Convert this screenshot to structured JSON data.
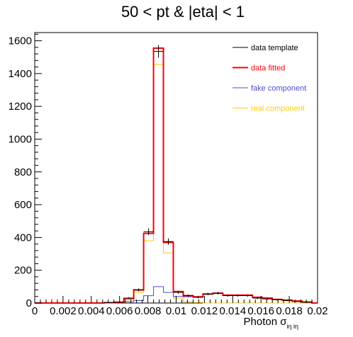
{
  "chart_data": {
    "type": "histogram",
    "title": "50 < pt & |eta| < 1",
    "xlabel": "Photon σ",
    "xlabel_sub": "iη iη",
    "ylabel": "",
    "xlim": [
      0,
      0.02
    ],
    "ylim": [
      0,
      1650
    ],
    "xticks": [
      {
        "value": 0,
        "label": "0"
      },
      {
        "value": 0.002,
        "label": "0.002"
      },
      {
        "value": 0.004,
        "label": "0.004"
      },
      {
        "value": 0.006,
        "label": "0.006"
      },
      {
        "value": 0.008,
        "label": "0.008"
      },
      {
        "value": 0.01,
        "label": "0.01"
      },
      {
        "value": 0.012,
        "label": "0.012"
      },
      {
        "value": 0.014,
        "label": "0.014"
      },
      {
        "value": 0.016,
        "label": "0.016"
      },
      {
        "value": 0.018,
        "label": "0.018"
      },
      {
        "value": 0.02,
        "label": "0.02"
      }
    ],
    "yticks": [
      {
        "value": 0,
        "label": "0"
      },
      {
        "value": 200,
        "label": "200"
      },
      {
        "value": 400,
        "label": "400"
      },
      {
        "value": 600,
        "label": "600"
      },
      {
        "value": 800,
        "label": "800"
      },
      {
        "value": 1000,
        "label": "1000"
      },
      {
        "value": 1200,
        "label": "1200"
      },
      {
        "value": 1400,
        "label": "1400"
      },
      {
        "value": 1600,
        "label": "1600"
      }
    ],
    "bin_edges": [
      0,
      0.0007,
      0.0014,
      0.0021,
      0.0028,
      0.0035,
      0.0042,
      0.0049,
      0.0056,
      0.0063,
      0.007,
      0.0077,
      0.0084,
      0.0091,
      0.0098,
      0.0105,
      0.0112,
      0.0119,
      0.0126,
      0.0133,
      0.014,
      0.0147,
      0.0154,
      0.0161,
      0.0168,
      0.0175,
      0.0182,
      0.0189,
      0.0196,
      0.02
    ],
    "series": [
      {
        "name": "data template",
        "style": "points",
        "color": "#000000",
        "values": [
          0,
          0,
          0,
          0,
          0,
          0,
          0,
          2,
          5,
          30,
          80,
          435,
          1535,
          375,
          65,
          45,
          35,
          55,
          60,
          45,
          45,
          45,
          30,
          25,
          20,
          15,
          10,
          5,
          0
        ]
      },
      {
        "name": "data fitted",
        "style": "step",
        "color": "#ff0000",
        "values": [
          0,
          0,
          0,
          0,
          0,
          0,
          0,
          2,
          5,
          28,
          80,
          425,
          1555,
          370,
          70,
          45,
          38,
          55,
          60,
          48,
          48,
          48,
          35,
          30,
          22,
          18,
          12,
          6,
          0
        ]
      },
      {
        "name": "fake component",
        "style": "step",
        "color": "#4b4bd6",
        "values": [
          0,
          0,
          0,
          0,
          0,
          0,
          0,
          1,
          2,
          8,
          15,
          45,
          100,
          65,
          40,
          38,
          35,
          55,
          60,
          48,
          48,
          48,
          35,
          30,
          22,
          18,
          12,
          6,
          0
        ]
      },
      {
        "name": "real component",
        "style": "step",
        "color": "#ffcc00",
        "values": [
          0,
          0,
          0,
          0,
          0,
          0,
          0,
          1,
          3,
          20,
          65,
          380,
          1455,
          305,
          30,
          7,
          3,
          0,
          0,
          0,
          0,
          0,
          0,
          0,
          0,
          0,
          0,
          0,
          0
        ]
      }
    ],
    "legend": {
      "position": "top-right",
      "entries": [
        {
          "label": "data template",
          "color": "#000000",
          "text_color": "#000000"
        },
        {
          "label": "data fitted",
          "color": "#ff0000",
          "text_color": "#ff0000"
        },
        {
          "label": "fake component",
          "color": "#4b4bd6",
          "text_color": "#4b4bd6"
        },
        {
          "label": "real component",
          "color": "#ffcc00",
          "text_color": "#ffcc00"
        }
      ]
    },
    "grid": false
  }
}
